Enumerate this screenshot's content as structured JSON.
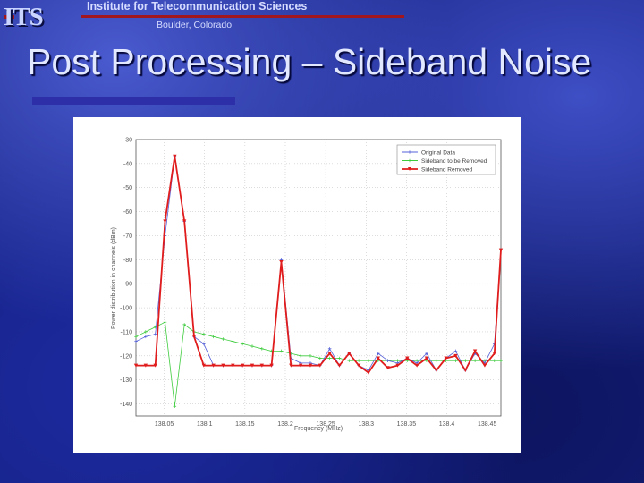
{
  "header": {
    "logo_text": "ITS",
    "org_name": "Institute for Telecommunication Sciences",
    "org_location": "Boulder, Colorado"
  },
  "slide": {
    "title": "Post Processing – Sideband Noise"
  },
  "colors": {
    "original": "#5560d8",
    "sideband_limited": "#3ecc3e",
    "sideband_removed": "#e01c1c"
  },
  "chart_data": {
    "type": "line",
    "title": "",
    "xlabel": "Frequency (MHz)",
    "ylabel": "Power distribution in channels (dBm)",
    "xlim": [
      138.015,
      138.467
    ],
    "ylim": [
      -145,
      -30
    ],
    "xticks": [
      "138.05",
      "138.1",
      "138.15",
      "138.2",
      "138.25",
      "138.3",
      "138.35",
      "138.4",
      "138.45"
    ],
    "xtick_values": [
      138.05,
      138.1,
      138.15,
      138.2,
      138.25,
      138.3,
      138.35,
      138.4,
      138.45
    ],
    "yticks": [
      -30,
      -40,
      -50,
      -60,
      -70,
      -80,
      -90,
      -100,
      -110,
      -120,
      -130,
      -140
    ],
    "ytick_labels": [
      "-30",
      "-40",
      "-50",
      "-60",
      "-70",
      "-80",
      "-90",
      "-100",
      "-110",
      "-120",
      "-130",
      "-140"
    ],
    "x": [
      138.015,
      138.027,
      138.039,
      138.051,
      138.063,
      138.075,
      138.087,
      138.099,
      138.111,
      138.123,
      138.135,
      138.147,
      138.159,
      138.171,
      138.183,
      138.195,
      138.207,
      138.219,
      138.231,
      138.243,
      138.255,
      138.267,
      138.279,
      138.291,
      138.303,
      138.315,
      138.327,
      138.339,
      138.351,
      138.363,
      138.375,
      138.387,
      138.399,
      138.411,
      138.423,
      138.435,
      138.447,
      138.459,
      138.467
    ],
    "series": [
      {
        "name": "Original Data",
        "marker": "+",
        "values": [
          -114,
          -112,
          -111,
          -70,
          -37,
          -64,
          -112,
          -115,
          -124,
          -124,
          -124,
          -124,
          -124,
          -124,
          -124,
          -80,
          -121,
          -123,
          -123,
          -124,
          -117,
          -124,
          -119,
          -124,
          -126,
          -119,
          -122,
          -123,
          -121,
          -123,
          -119,
          -126,
          -121,
          -118,
          -126,
          -119,
          -123,
          -115,
          -76
        ]
      },
      {
        "name": "Sideband to be Removed",
        "marker": "+",
        "values": [
          -112,
          -110,
          -108,
          -106,
          -141,
          -107,
          -110,
          -111,
          -112,
          -113,
          -114,
          -115,
          -116,
          -117,
          -118,
          -118,
          -119,
          -120,
          -120,
          -121,
          -121,
          -121,
          -122,
          -122,
          -122,
          -122,
          -122,
          -122,
          -122,
          -122,
          -122,
          -122,
          -122,
          -122,
          -122,
          -122,
          -122,
          -122,
          -122
        ]
      },
      {
        "name": "Sideband Removed",
        "marker": "v",
        "values": [
          -124,
          -124,
          -124,
          -64,
          -37,
          -64,
          -112,
          -124,
          -124,
          -124,
          -124,
          -124,
          -124,
          -124,
          -124,
          -81,
          -124,
          -124,
          -124,
          -124,
          -119,
          -124,
          -119,
          -124,
          -127,
          -121,
          -125,
          -124,
          -121,
          -124,
          -121,
          -126,
          -121,
          -120,
          -126,
          -118,
          -124,
          -119,
          -76
        ]
      }
    ],
    "grid": true,
    "legend": "top-right"
  }
}
